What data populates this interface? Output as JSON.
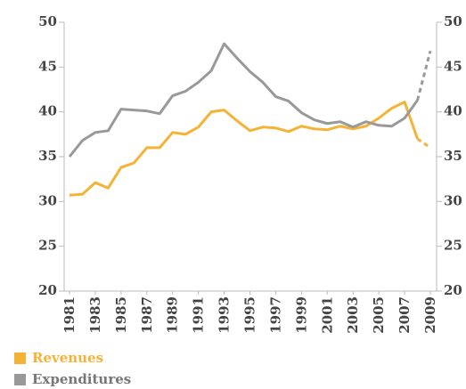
{
  "chart_data": {
    "type": "line",
    "x": [
      1981,
      1982,
      1983,
      1984,
      1985,
      1986,
      1987,
      1988,
      1989,
      1990,
      1991,
      1992,
      1993,
      1994,
      1995,
      1996,
      1997,
      1998,
      1999,
      2000,
      2001,
      2002,
      2003,
      2004,
      2005,
      2006,
      2007,
      2008,
      2009
    ],
    "series": [
      {
        "name": "Revenues",
        "color": "#f5b335",
        "values": [
          30.7,
          30.8,
          32.1,
          31.5,
          33.8,
          34.3,
          36.0,
          36.0,
          37.7,
          37.5,
          38.3,
          40.0,
          40.2,
          39.0,
          37.9,
          38.3,
          38.2,
          37.8,
          38.4,
          38.1,
          38.0,
          38.4,
          38.1,
          38.4,
          39.3,
          40.4,
          41.1,
          37.0,
          36.0
        ]
      },
      {
        "name": "Expenditures",
        "color": "#999999",
        "values": [
          35.0,
          36.8,
          37.7,
          37.9,
          40.3,
          40.2,
          40.1,
          39.8,
          41.8,
          42.3,
          43.3,
          44.6,
          47.6,
          46.0,
          44.5,
          43.3,
          41.7,
          41.2,
          39.9,
          39.1,
          38.7,
          38.9,
          38.3,
          38.9,
          38.5,
          38.4,
          39.3,
          41.3,
          46.8
        ]
      }
    ],
    "xlim": [
      1981,
      2009
    ],
    "xticks": [
      1981,
      1983,
      1985,
      1987,
      1989,
      1991,
      1993,
      1995,
      1997,
      1999,
      2001,
      2003,
      2005,
      2007,
      2009
    ],
    "ylim": [
      20,
      50
    ],
    "yticks": [
      20,
      25,
      30,
      35,
      40,
      45,
      50
    ],
    "y2lim": [
      20,
      50
    ],
    "y2ticks": [
      20,
      25,
      30,
      35,
      40,
      45,
      50
    ],
    "grid": false
  }
}
